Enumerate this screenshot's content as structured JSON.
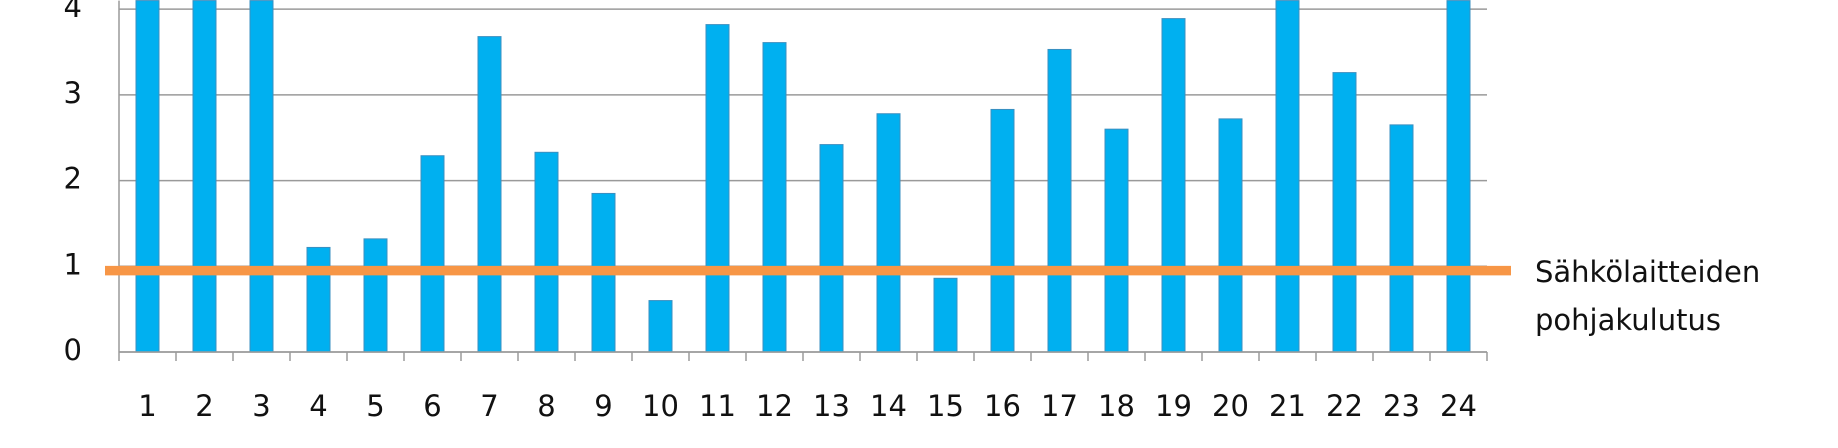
{
  "chart_data": {
    "type": "bar",
    "categories": [
      "1",
      "2",
      "3",
      "4",
      "5",
      "6",
      "7",
      "8",
      "9",
      "10",
      "11",
      "12",
      "13",
      "14",
      "15",
      "16",
      "17",
      "18",
      "19",
      "20",
      "21",
      "22",
      "23",
      "24"
    ],
    "values": [
      4.1,
      4.1,
      4.1,
      1.22,
      1.32,
      2.29,
      3.68,
      2.33,
      1.85,
      0.6,
      3.82,
      3.61,
      2.42,
      2.78,
      0.86,
      2.83,
      3.53,
      2.6,
      3.89,
      2.72,
      4.1,
      3.26,
      2.65,
      4.1
    ],
    "color": "#00b0f0",
    "reference_line": {
      "name": "Sähkölaitteiden pohjakulutus",
      "value": 0.95,
      "color": "#f79646"
    },
    "ylim": [
      0,
      4.1
    ],
    "yticks": [
      0,
      1,
      2,
      3,
      4
    ],
    "grid": true
  }
}
